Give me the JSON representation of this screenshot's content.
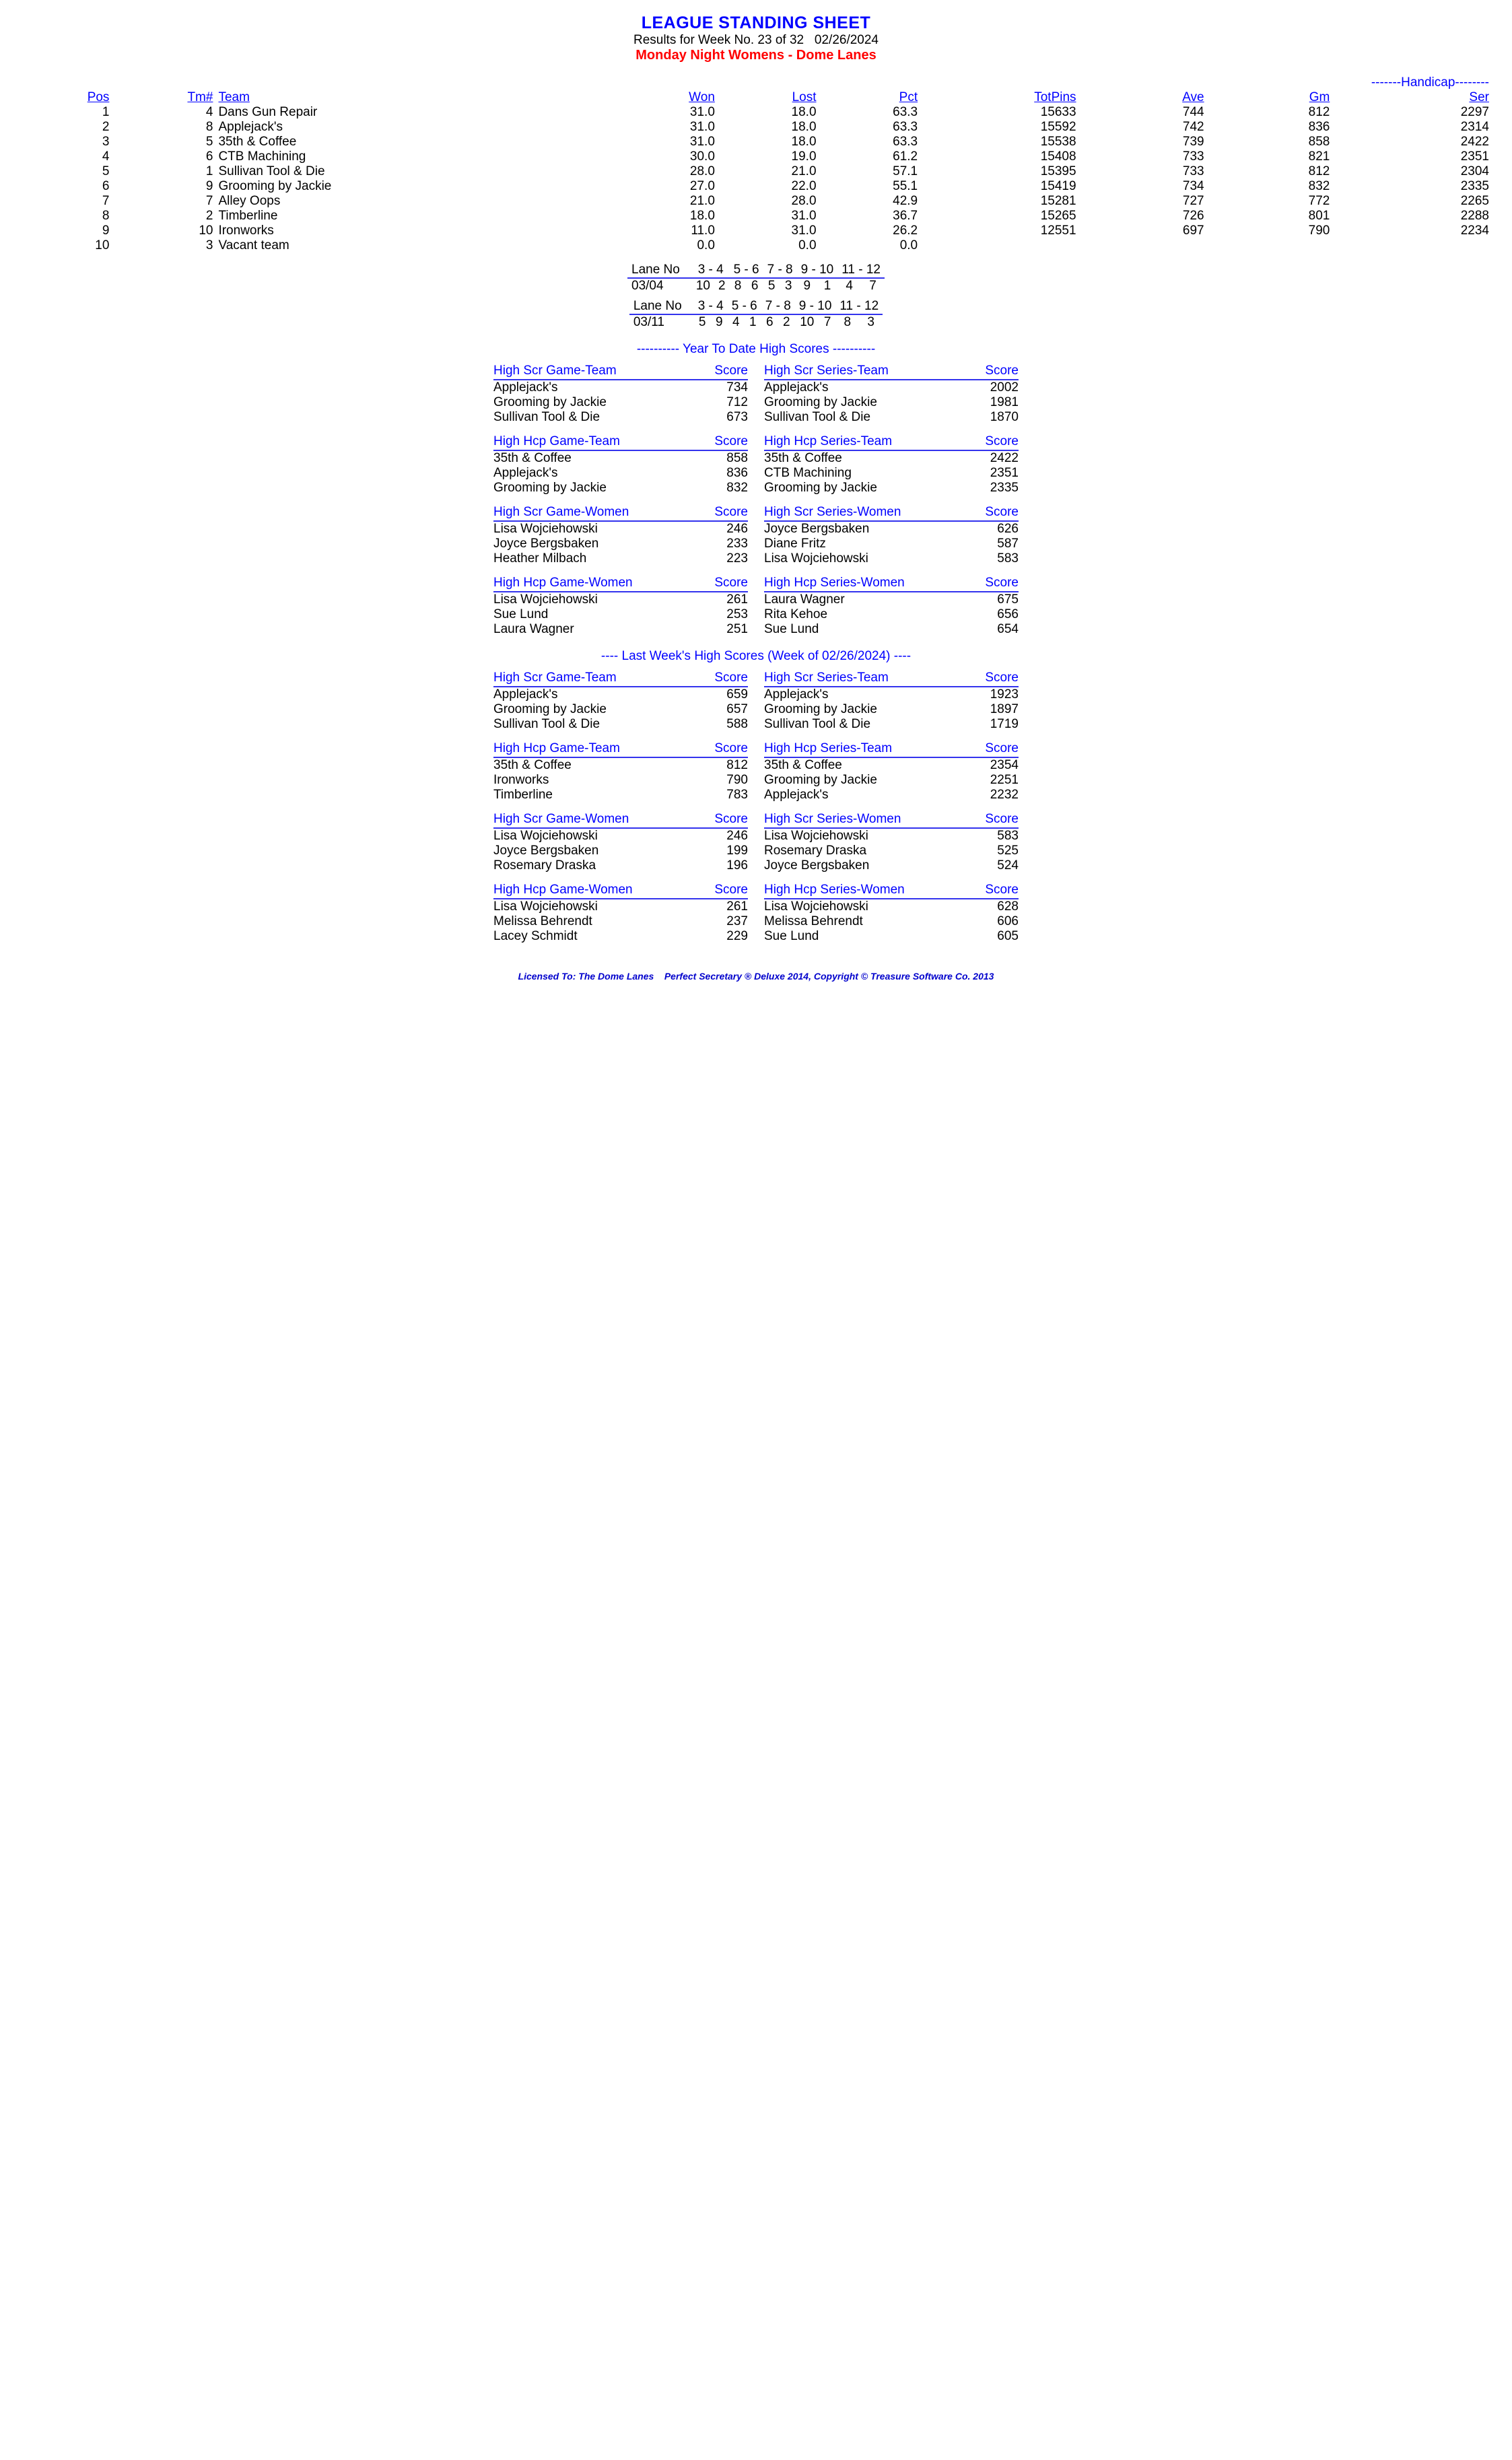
{
  "header": {
    "title": "LEAGUE STANDING SHEET",
    "subtitle": "Results for Week No. 23 of 32   02/26/2024",
    "league": "Monday Night Womens - Dome Lanes"
  },
  "handicap_span": "-------Handicap--------",
  "standings": {
    "columns": [
      "Pos",
      "Tm#",
      "Team",
      "Won",
      "Lost",
      "Pct",
      "TotPins",
      "Ave",
      "Gm",
      "Ser"
    ],
    "rows": [
      [
        "1",
        "4",
        "Dans Gun Repair",
        "31.0",
        "18.0",
        "63.3",
        "15633",
        "744",
        "812",
        "2297"
      ],
      [
        "2",
        "8",
        "Applejack's",
        "31.0",
        "18.0",
        "63.3",
        "15592",
        "742",
        "836",
        "2314"
      ],
      [
        "3",
        "5",
        "35th & Coffee",
        "31.0",
        "18.0",
        "63.3",
        "15538",
        "739",
        "858",
        "2422"
      ],
      [
        "4",
        "6",
        "CTB Machining",
        "30.0",
        "19.0",
        "61.2",
        "15408",
        "733",
        "821",
        "2351"
      ],
      [
        "5",
        "1",
        "Sullivan Tool & Die",
        "28.0",
        "21.0",
        "57.1",
        "15395",
        "733",
        "812",
        "2304"
      ],
      [
        "6",
        "9",
        "Grooming by Jackie",
        "27.0",
        "22.0",
        "55.1",
        "15419",
        "734",
        "832",
        "2335"
      ],
      [
        "7",
        "7",
        "Alley Oops",
        "21.0",
        "28.0",
        "42.9",
        "15281",
        "727",
        "772",
        "2265"
      ],
      [
        "8",
        "2",
        "Timberline",
        "18.0",
        "31.0",
        "36.7",
        "15265",
        "726",
        "801",
        "2288"
      ],
      [
        "9",
        "10",
        "Ironworks",
        "11.0",
        "31.0",
        "26.2",
        "12551",
        "697",
        "790",
        "2234"
      ],
      [
        "10",
        "3",
        "Vacant team",
        "0.0",
        "0.0",
        "0.0",
        "",
        "",
        "",
        ""
      ]
    ]
  },
  "lanes": [
    {
      "label": "Lane No",
      "date": "03/04",
      "pairs": [
        "3 -  4",
        "5 -  6",
        "7 -  8",
        "9 - 10",
        "11 - 12"
      ],
      "assign": [
        [
          "10",
          "2"
        ],
        [
          "8",
          "6"
        ],
        [
          "5",
          "3"
        ],
        [
          "9",
          "1"
        ],
        [
          "4",
          "7"
        ]
      ]
    },
    {
      "label": "Lane No",
      "date": "03/11",
      "pairs": [
        "3 -  4",
        "5 -  6",
        "7 -  8",
        "9 - 10",
        "11 - 12"
      ],
      "assign": [
        [
          "5",
          "9"
        ],
        [
          "4",
          "1"
        ],
        [
          "6",
          "2"
        ],
        [
          "10",
          "7"
        ],
        [
          "8",
          "3"
        ]
      ]
    }
  ],
  "ytd_title": "----------  Year To Date High Scores  ----------",
  "lastweek_title": "----   Last Week's High Scores   (Week of 02/26/2024)   ----",
  "score_header": {
    "name_col": "",
    "score_col": "Score"
  },
  "ytd": [
    {
      "title": "High Scr Game-Team",
      "rows": [
        [
          "Applejack's",
          "734"
        ],
        [
          "Grooming by Jackie",
          "712"
        ],
        [
          "Sullivan Tool & Die",
          "673"
        ]
      ]
    },
    {
      "title": "High Scr Series-Team",
      "rows": [
        [
          "Applejack's",
          "2002"
        ],
        [
          "Grooming by Jackie",
          "1981"
        ],
        [
          "Sullivan Tool & Die",
          "1870"
        ]
      ]
    },
    {
      "title": "High Hcp Game-Team",
      "rows": [
        [
          "35th & Coffee",
          "858"
        ],
        [
          "Applejack's",
          "836"
        ],
        [
          "Grooming by Jackie",
          "832"
        ]
      ]
    },
    {
      "title": "High Hcp Series-Team",
      "rows": [
        [
          "35th & Coffee",
          "2422"
        ],
        [
          "CTB Machining",
          "2351"
        ],
        [
          "Grooming by Jackie",
          "2335"
        ]
      ]
    },
    {
      "title": "High Scr Game-Women",
      "rows": [
        [
          "Lisa Wojciehowski",
          "246"
        ],
        [
          "Joyce Bergsbaken",
          "233"
        ],
        [
          "Heather Milbach",
          "223"
        ]
      ]
    },
    {
      "title": "High Scr Series-Women",
      "rows": [
        [
          "Joyce Bergsbaken",
          "626"
        ],
        [
          "Diane Fritz",
          "587"
        ],
        [
          "Lisa Wojciehowski",
          "583"
        ]
      ]
    },
    {
      "title": "High Hcp Game-Women",
      "rows": [
        [
          "Lisa Wojciehowski",
          "261"
        ],
        [
          "Sue Lund",
          "253"
        ],
        [
          "Laura Wagner",
          "251"
        ]
      ]
    },
    {
      "title": "High Hcp Series-Women",
      "rows": [
        [
          "Laura Wagner",
          "675"
        ],
        [
          "Rita Kehoe",
          "656"
        ],
        [
          "Sue Lund",
          "654"
        ]
      ]
    }
  ],
  "lastweek": [
    {
      "title": "High Scr Game-Team",
      "rows": [
        [
          "Applejack's",
          "659"
        ],
        [
          "Grooming by Jackie",
          "657"
        ],
        [
          "Sullivan Tool & Die",
          "588"
        ]
      ]
    },
    {
      "title": "High Scr Series-Team",
      "rows": [
        [
          "Applejack's",
          "1923"
        ],
        [
          "Grooming by Jackie",
          "1897"
        ],
        [
          "Sullivan Tool & Die",
          "1719"
        ]
      ]
    },
    {
      "title": "High Hcp Game-Team",
      "rows": [
        [
          "35th & Coffee",
          "812"
        ],
        [
          "Ironworks",
          "790"
        ],
        [
          "Timberline",
          "783"
        ]
      ]
    },
    {
      "title": "High Hcp Series-Team",
      "rows": [
        [
          "35th & Coffee",
          "2354"
        ],
        [
          "Grooming by Jackie",
          "2251"
        ],
        [
          "Applejack's",
          "2232"
        ]
      ]
    },
    {
      "title": "High Scr Game-Women",
      "rows": [
        [
          "Lisa Wojciehowski",
          "246"
        ],
        [
          "Joyce Bergsbaken",
          "199"
        ],
        [
          "Rosemary Draska",
          "196"
        ]
      ]
    },
    {
      "title": "High Scr Series-Women",
      "rows": [
        [
          "Lisa Wojciehowski",
          "583"
        ],
        [
          "Rosemary Draska",
          "525"
        ],
        [
          "Joyce Bergsbaken",
          "524"
        ]
      ]
    },
    {
      "title": "High Hcp Game-Women",
      "rows": [
        [
          "Lisa Wojciehowski",
          "261"
        ],
        [
          "Melissa Behrendt",
          "237"
        ],
        [
          "Lacey Schmidt",
          "229"
        ]
      ]
    },
    {
      "title": "High Hcp Series-Women",
      "rows": [
        [
          "Lisa Wojciehowski",
          "628"
        ],
        [
          "Melissa Behrendt",
          "606"
        ],
        [
          "Sue Lund",
          "605"
        ]
      ]
    }
  ],
  "footer": "Licensed To: The Dome Lanes    Perfect Secretary ® Deluxe  2014, Copyright © Treasure Software Co. 2013"
}
